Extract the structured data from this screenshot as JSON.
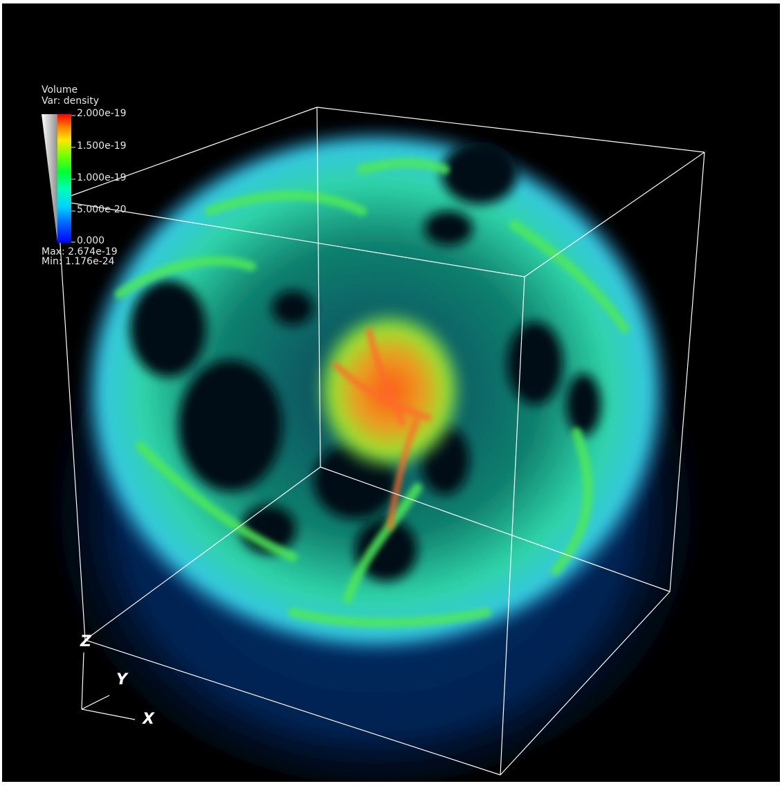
{
  "legend": {
    "plot_type": "Volume",
    "variable": "Var: density",
    "ticks": [
      "2.000e-19",
      "1.500e-19",
      "1.000e-19",
      "5.000e-20",
      "0.000"
    ],
    "max": "Max:  2.674e-19",
    "min": "Min:  1.176e-24",
    "colormap": [
      "#0000ff",
      "#00b4ff",
      "#00ffff",
      "#00ff64",
      "#30ff00",
      "#c8ff00",
      "#ffd200",
      "#ff6400",
      "#ff0000"
    ]
  },
  "axes": {
    "x": "X",
    "y": "Y",
    "z": "Z"
  },
  "colors": {
    "background": "#000000",
    "bounding_box": "#ffffff"
  }
}
